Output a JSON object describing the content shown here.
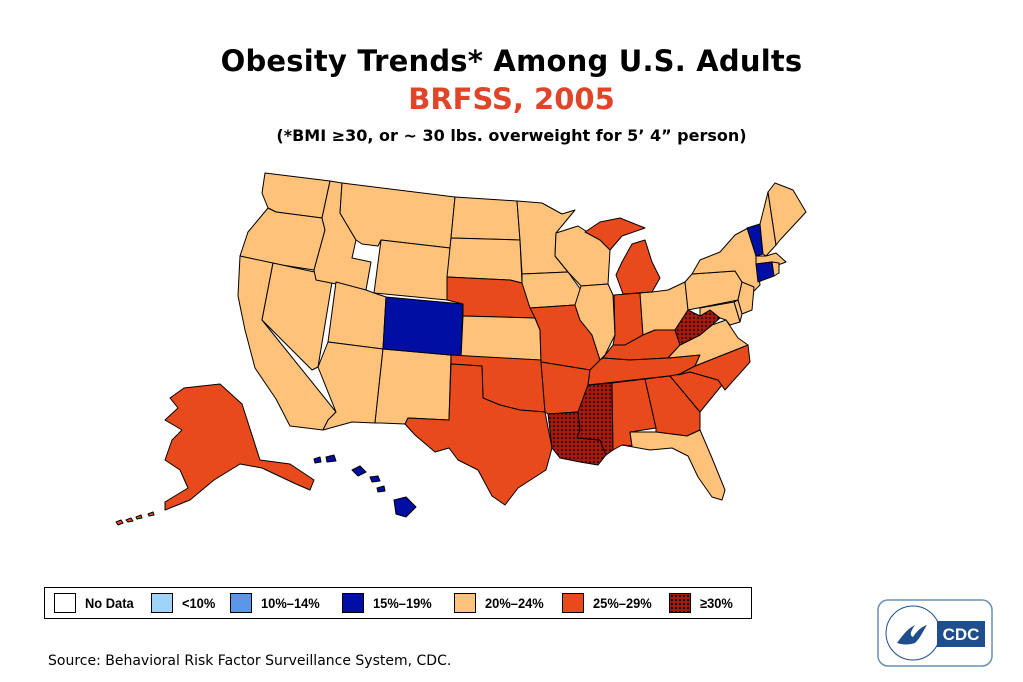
{
  "header": {
    "title": "Obesity Trends* Among U.S. Adults",
    "subtitle": "BRFSS, 2005",
    "note": "(*BMI ≥30, or ~ 30 lbs. overweight for 5’ 4” person)"
  },
  "legend": {
    "categories": [
      {
        "key": "nodata",
        "label": "No Data",
        "color": "#ffffff",
        "pattern": "none"
      },
      {
        "key": "lt10",
        "label": "<10%",
        "color": "#9fd3f7",
        "pattern": "none"
      },
      {
        "key": "10to14",
        "label": "10%–14%",
        "color": "#5b96e8",
        "pattern": "none"
      },
      {
        "key": "15to19",
        "label": "15%–19%",
        "color": "#000ea3",
        "pattern": "none"
      },
      {
        "key": "20to24",
        "label": "20%–24%",
        "color": "#fec27a",
        "pattern": "none"
      },
      {
        "key": "25to29",
        "label": "25%–29%",
        "color": "#e84a1c",
        "pattern": "none"
      },
      {
        "key": "gte30",
        "label": "≥30%",
        "color": "#a51a0e",
        "pattern": "dots"
      }
    ]
  },
  "map": {
    "states": {
      "WA": "20to24",
      "OR": "20to24",
      "CA": "20to24",
      "NV": "20to24",
      "ID": "20to24",
      "MT": "20to24",
      "WY": "20to24",
      "UT": "20to24",
      "AZ": "20to24",
      "NM": "20to24",
      "CO": "15to19",
      "ND": "20to24",
      "SD": "20to24",
      "NE": "25to29",
      "KS": "20to24",
      "OK": "25to29",
      "TX": "25to29",
      "MN": "20to24",
      "IA": "20to24",
      "MO": "25to29",
      "AR": "25to29",
      "LA": "gte30",
      "WI": "20to24",
      "IL": "20to24",
      "MI": "25to29",
      "IN": "25to29",
      "OH": "20to24",
      "KY": "25to29",
      "TN": "25to29",
      "MS": "gte30",
      "AL": "25to29",
      "GA": "25to29",
      "FL": "20to24",
      "SC": "25to29",
      "NC": "25to29",
      "VA": "20to24",
      "WV": "gte30",
      "PA": "20to24",
      "NY": "20to24",
      "VT": "15to19",
      "NH": "20to24",
      "ME": "20to24",
      "MA": "20to24",
      "CT": "15to19",
      "RI": "20to24",
      "NJ": "20to24",
      "DE": "20to24",
      "MD": "20to24",
      "AK": "25to29",
      "HI": "15to19"
    }
  },
  "footer": {
    "source": "Source: Behavioral Risk Factor Surveillance System, CDC."
  },
  "logo": {
    "text": "CDC"
  }
}
